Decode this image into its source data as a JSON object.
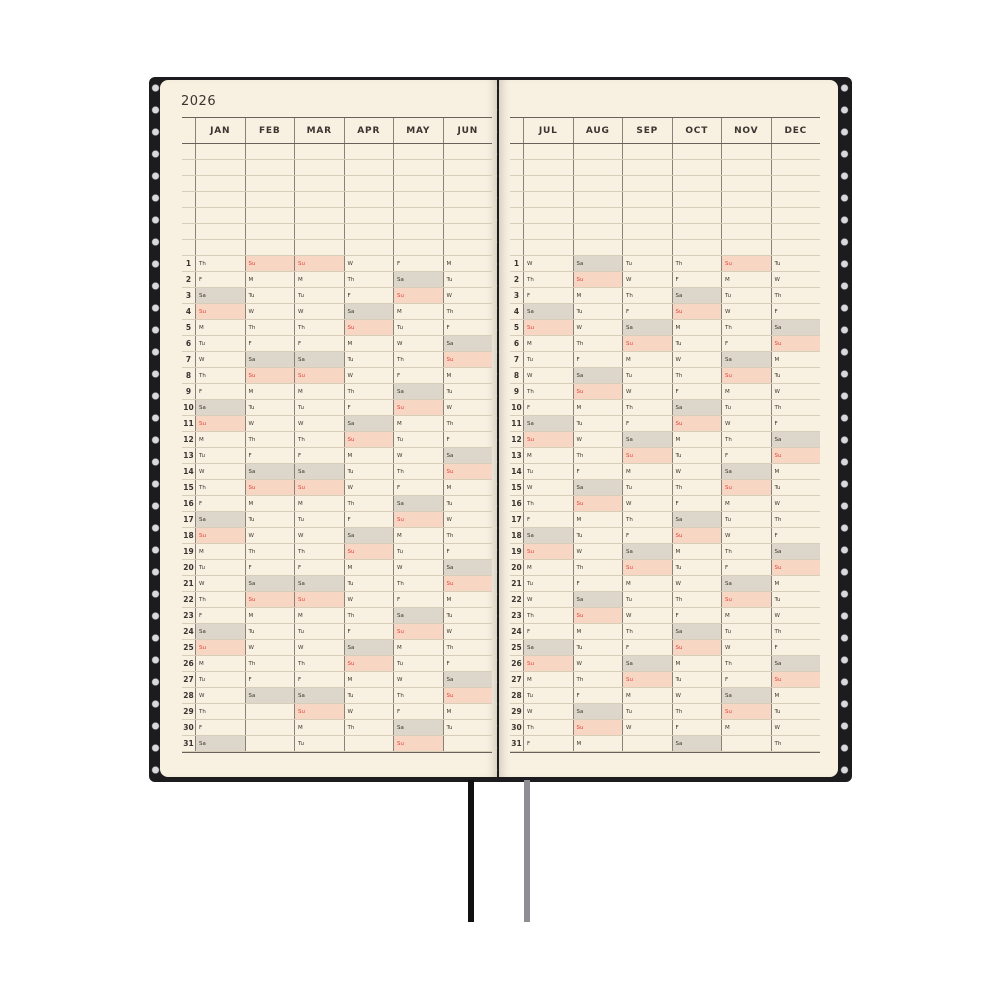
{
  "year": "2026",
  "colors": {
    "saturday_shade": "#dcd6cb",
    "sunday_shade": "#f8d6c4",
    "sunday_text": "#e0453a",
    "paper": "#f8f0e0",
    "cover": "#1c1c1e"
  },
  "left_page": {
    "months": [
      {
        "name": "JAN",
        "days": [
          "Th",
          "F",
          "Sa",
          "Su",
          "M",
          "Tu",
          "W",
          "Th",
          "F",
          "Sa",
          "Su",
          "M",
          "Tu",
          "W",
          "Th",
          "F",
          "Sa",
          "Su",
          "M",
          "Tu",
          "W",
          "Th",
          "F",
          "Sa",
          "Su",
          "M",
          "Tu",
          "W",
          "Th",
          "F",
          "Sa"
        ]
      },
      {
        "name": "FEB",
        "days": [
          "Su",
          "M",
          "Tu",
          "W",
          "Th",
          "F",
          "Sa",
          "Su",
          "M",
          "Tu",
          "W",
          "Th",
          "F",
          "Sa",
          "Su",
          "M",
          "Tu",
          "W",
          "Th",
          "F",
          "Sa",
          "Su",
          "M",
          "Tu",
          "W",
          "Th",
          "F",
          "Sa"
        ]
      },
      {
        "name": "MAR",
        "days": [
          "Su",
          "M",
          "Tu",
          "W",
          "Th",
          "F",
          "Sa",
          "Su",
          "M",
          "Tu",
          "W",
          "Th",
          "F",
          "Sa",
          "Su",
          "M",
          "Tu",
          "W",
          "Th",
          "F",
          "Sa",
          "Su",
          "M",
          "Tu",
          "W",
          "Th",
          "F",
          "Sa",
          "Su",
          "M",
          "Tu"
        ]
      },
      {
        "name": "APR",
        "days": [
          "W",
          "Th",
          "F",
          "Sa",
          "Su",
          "M",
          "Tu",
          "W",
          "Th",
          "F",
          "Sa",
          "Su",
          "M",
          "Tu",
          "W",
          "Th",
          "F",
          "Sa",
          "Su",
          "M",
          "Tu",
          "W",
          "Th",
          "F",
          "Sa",
          "Su",
          "M",
          "Tu",
          "W",
          "Th"
        ]
      },
      {
        "name": "MAY",
        "days": [
          "F",
          "Sa",
          "Su",
          "M",
          "Tu",
          "W",
          "Th",
          "F",
          "Sa",
          "Su",
          "M",
          "Tu",
          "W",
          "Th",
          "F",
          "Sa",
          "Su",
          "M",
          "Tu",
          "W",
          "Th",
          "F",
          "Sa",
          "Su",
          "M",
          "Tu",
          "W",
          "Th",
          "F",
          "Sa",
          "Su"
        ]
      },
      {
        "name": "JUN",
        "days": [
          "M",
          "Tu",
          "W",
          "Th",
          "F",
          "Sa",
          "Su",
          "M",
          "Tu",
          "W",
          "Th",
          "F",
          "Sa",
          "Su",
          "M",
          "Tu",
          "W",
          "Th",
          "F",
          "Sa",
          "Su",
          "M",
          "Tu",
          "W",
          "Th",
          "F",
          "Sa",
          "Su",
          "M",
          "Tu"
        ]
      }
    ]
  },
  "right_page": {
    "months": [
      {
        "name": "JUL",
        "days": [
          "W",
          "Th",
          "F",
          "Sa",
          "Su",
          "M",
          "Tu",
          "W",
          "Th",
          "F",
          "Sa",
          "Su",
          "M",
          "Tu",
          "W",
          "Th",
          "F",
          "Sa",
          "Su",
          "M",
          "Tu",
          "W",
          "Th",
          "F",
          "Sa",
          "Su",
          "M",
          "Tu",
          "W",
          "Th",
          "F"
        ]
      },
      {
        "name": "AUG",
        "days": [
          "Sa",
          "Su",
          "M",
          "Tu",
          "W",
          "Th",
          "F",
          "Sa",
          "Su",
          "M",
          "Tu",
          "W",
          "Th",
          "F",
          "Sa",
          "Su",
          "M",
          "Tu",
          "W",
          "Th",
          "F",
          "Sa",
          "Su",
          "M",
          "Tu",
          "W",
          "Th",
          "F",
          "Sa",
          "Su",
          "M"
        ]
      },
      {
        "name": "SEP",
        "days": [
          "Tu",
          "W",
          "Th",
          "F",
          "Sa",
          "Su",
          "M",
          "Tu",
          "W",
          "Th",
          "F",
          "Sa",
          "Su",
          "M",
          "Tu",
          "W",
          "Th",
          "F",
          "Sa",
          "Su",
          "M",
          "Tu",
          "W",
          "Th",
          "F",
          "Sa",
          "Su",
          "M",
          "Tu",
          "W"
        ]
      },
      {
        "name": "OCT",
        "days": [
          "Th",
          "F",
          "Sa",
          "Su",
          "M",
          "Tu",
          "W",
          "Th",
          "F",
          "Sa",
          "Su",
          "M",
          "Tu",
          "W",
          "Th",
          "F",
          "Sa",
          "Su",
          "M",
          "Tu",
          "W",
          "Th",
          "F",
          "Sa",
          "Su",
          "M",
          "Tu",
          "W",
          "Th",
          "F",
          "Sa"
        ]
      },
      {
        "name": "NOV",
        "days": [
          "Su",
          "M",
          "Tu",
          "W",
          "Th",
          "F",
          "Sa",
          "Su",
          "M",
          "Tu",
          "W",
          "Th",
          "F",
          "Sa",
          "Su",
          "M",
          "Tu",
          "W",
          "Th",
          "F",
          "Sa",
          "Su",
          "M",
          "Tu",
          "W",
          "Th",
          "F",
          "Sa",
          "Su",
          "M"
        ]
      },
      {
        "name": "DEC",
        "days": [
          "Tu",
          "W",
          "Th",
          "F",
          "Sa",
          "Su",
          "M",
          "Tu",
          "W",
          "Th",
          "F",
          "Sa",
          "Su",
          "M",
          "Tu",
          "W",
          "Th",
          "F",
          "Sa",
          "Su",
          "M",
          "Tu",
          "W",
          "Th",
          "F",
          "Sa",
          "Su",
          "M",
          "Tu",
          "W",
          "Th"
        ]
      }
    ]
  },
  "day_numbers": [
    "1",
    "2",
    "3",
    "4",
    "5",
    "6",
    "7",
    "8",
    "9",
    "10",
    "11",
    "12",
    "13",
    "14",
    "15",
    "16",
    "17",
    "18",
    "19",
    "20",
    "21",
    "22",
    "23",
    "24",
    "25",
    "26",
    "27",
    "28",
    "29",
    "30",
    "31"
  ],
  "ribbons": [
    {
      "color": "#111111"
    },
    {
      "color": "#8e8e94"
    }
  ]
}
